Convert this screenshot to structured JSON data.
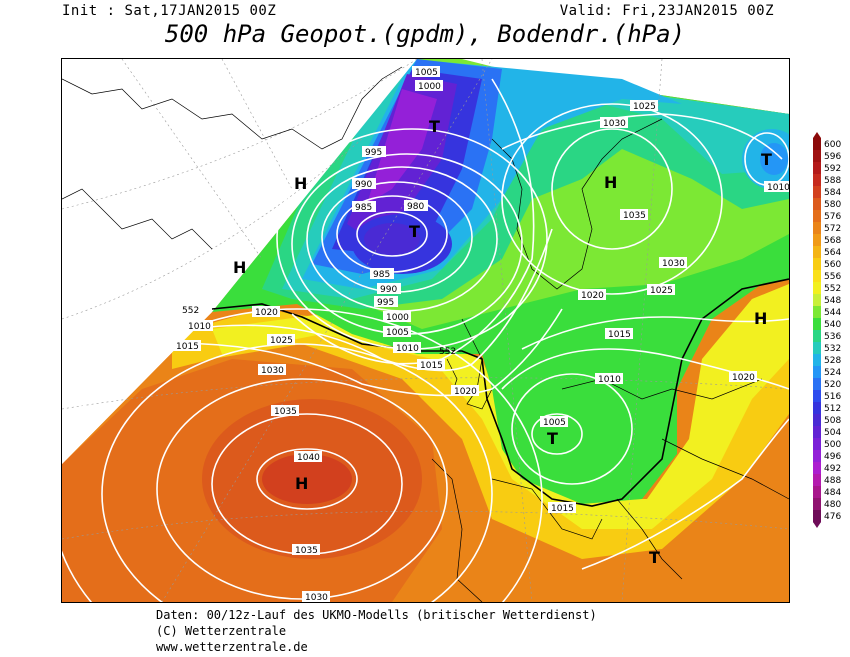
{
  "header": {
    "init": "Init : Sat,17JAN2015 00Z",
    "valid": "Valid: Fri,23JAN2015 00Z",
    "title": "500 hPa Geopot.(gpdm), Bodendr.(hPa)"
  },
  "map": {
    "isobar_labels": [
      "1005",
      "1000",
      "995",
      "990",
      "985",
      "980",
      "985",
      "990",
      "995",
      "1000",
      "1005",
      "1010",
      "1015",
      "1020",
      "1010",
      "1015",
      "1020",
      "1025",
      "1030",
      "1035",
      "1040",
      "1035",
      "1030",
      "1025",
      "1030",
      "1035",
      "1030",
      "1025",
      "1020",
      "1015",
      "1010",
      "1005",
      "1015",
      "1020",
      "1010",
      "1025",
      "1020",
      "552",
      "552",
      "552"
    ],
    "pressure_centers": [
      "T",
      "H",
      "T",
      "H",
      "H",
      "T",
      "T",
      "H",
      "T",
      "H",
      "T"
    ]
  },
  "color_scale": {
    "labels": [
      "600",
      "596",
      "592",
      "588",
      "584",
      "580",
      "576",
      "572",
      "568",
      "564",
      "560",
      "556",
      "552",
      "548",
      "544",
      "540",
      "536",
      "532",
      "528",
      "524",
      "520",
      "516",
      "512",
      "508",
      "504",
      "500",
      "496",
      "492",
      "488",
      "484",
      "480",
      "476"
    ],
    "colors": [
      "#8c0a0a",
      "#a01212",
      "#b41a1a",
      "#c62a1e",
      "#d2401e",
      "#dc5a1c",
      "#e46e1a",
      "#ea8418",
      "#f09a16",
      "#f4b414",
      "#f8cc12",
      "#fae01a",
      "#f2f020",
      "#c8f03a",
      "#7ce834",
      "#3ade3c",
      "#2ad684",
      "#26ccbc",
      "#22b4e8",
      "#2496f6",
      "#2a72f4",
      "#2e4cee",
      "#3634de",
      "#4a2ad4",
      "#6222d4",
      "#7a20d8",
      "#9420d8",
      "#ac1ed0",
      "#b41aae",
      "#a8168c",
      "#901270",
      "#6e0c58"
    ]
  },
  "footer": {
    "line1": "Daten: 00/12z-Lauf des UKMO-Modells (britischer Wetterdienst)",
    "line2": "(C) Wetterzentrale",
    "line3": "www.wetterzentrale.de"
  }
}
